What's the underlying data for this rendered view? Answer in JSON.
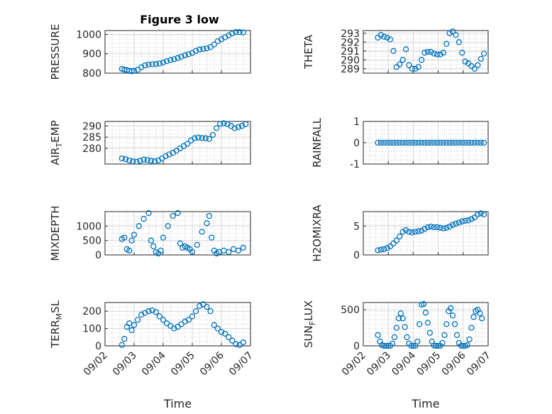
{
  "chart_data": [
    {
      "type": "scatter",
      "title": "Figure 3 low",
      "ylabel": "PRESSURE",
      "ylim": [
        800,
        1020
      ],
      "yticks": [
        800,
        900,
        1000
      ],
      "xlim": [
        "09/02",
        "09/07"
      ],
      "xticks": [],
      "grid": true,
      "marker_color": "#0072bd",
      "x": [
        "09/02 14:00",
        "09/02 16:00",
        "09/02 18:00",
        "09/02 20:00",
        "09/02 22:00",
        "09/03 00:00",
        "09/03 03:00",
        "09/03 06:00",
        "09/03 09:00",
        "09/03 12:00",
        "09/03 15:00",
        "09/03 18:00",
        "09/03 21:00",
        "09/04 00:00",
        "09/04 03:00",
        "09/04 06:00",
        "09/04 09:00",
        "09/04 12:00",
        "09/04 15:00",
        "09/04 18:00",
        "09/04 21:00",
        "09/05 00:00",
        "09/05 03:00",
        "09/05 06:00",
        "09/05 09:00",
        "09/05 12:00",
        "09/05 15:00",
        "09/05 18:00",
        "09/05 21:00",
        "09/06 00:00",
        "09/06 03:00",
        "09/06 06:00",
        "09/06 09:00",
        "09/06 12:00",
        "09/06 15:00",
        "09/06 18:00"
      ],
      "y": [
        822,
        818,
        815,
        812,
        810,
        812,
        818,
        830,
        840,
        844,
        846,
        847,
        850,
        855,
        862,
        868,
        872,
        878,
        885,
        892,
        898,
        905,
        915,
        922,
        925,
        928,
        935,
        948,
        965,
        975,
        985,
        995,
        1005,
        1012,
        1012,
        1010
      ]
    },
    {
      "type": "scatter",
      "ylabel": "THETA",
      "ylim": [
        288.5,
        293.3
      ],
      "yticks": [
        289,
        290,
        291,
        292,
        293
      ],
      "xlim": [
        "09/02",
        "09/07"
      ],
      "xticks": [],
      "grid": true,
      "marker_color": "#0072bd",
      "x": [
        "09/02 14:00",
        "09/02 17:00",
        "09/02 20:00",
        "09/02 23:00",
        "09/03 02:00",
        "09/03 05:00",
        "09/03 08:00",
        "09/03 11:00",
        "09/03 14:00",
        "09/03 17:00",
        "09/03 20:00",
        "09/03 23:00",
        "09/04 02:00",
        "09/04 05:00",
        "09/04 08:00",
        "09/04 11:00",
        "09/04 14:00",
        "09/04 17:00",
        "09/04 20:00",
        "09/04 23:00",
        "09/05 02:00",
        "09/05 05:00",
        "09/05 08:00",
        "09/05 11:00",
        "09/05 14:00",
        "09/05 17:00",
        "09/05 20:00",
        "09/05 23:00",
        "09/06 02:00",
        "09/06 05:00",
        "09/06 08:00",
        "09/06 11:00",
        "09/06 14:00",
        "09/06 17:00",
        "09/06 20:00"
      ],
      "y": [
        292.5,
        292.8,
        292.6,
        292.5,
        292.3,
        291.0,
        289.2,
        289.5,
        290.0,
        291.2,
        289.4,
        289.0,
        289.0,
        289.2,
        290.0,
        290.8,
        290.9,
        290.9,
        290.7,
        290.6,
        290.6,
        290.8,
        291.8,
        293.0,
        293.2,
        292.8,
        292.0,
        290.8,
        289.8,
        289.6,
        289.3,
        289.0,
        289.4,
        290.1,
        290.7
      ]
    },
    {
      "type": "scatter",
      "ylabel": "AIR_TEMP",
      "ylim": [
        273,
        292
      ],
      "yticks": [
        280,
        285,
        290
      ],
      "xlim": [
        "09/02",
        "09/07"
      ],
      "xticks": [],
      "grid": true,
      "marker_color": "#0072bd",
      "x": [
        "09/02 14:00",
        "09/02 17:00",
        "09/02 20:00",
        "09/02 23:00",
        "09/03 02:00",
        "09/03 05:00",
        "09/03 08:00",
        "09/03 11:00",
        "09/03 14:00",
        "09/03 17:00",
        "09/03 20:00",
        "09/03 23:00",
        "09/04 02:00",
        "09/04 05:00",
        "09/04 08:00",
        "09/04 11:00",
        "09/04 14:00",
        "09/04 17:00",
        "09/04 20:00",
        "09/04 23:00",
        "09/05 02:00",
        "09/05 05:00",
        "09/05 08:00",
        "09/05 11:00",
        "09/05 14:00",
        "09/05 17:00",
        "09/05 20:00",
        "09/05 23:00",
        "09/06 02:00",
        "09/06 05:00",
        "09/06 08:00",
        "09/06 11:00",
        "09/06 14:00",
        "09/06 17:00",
        "09/06 20:00"
      ],
      "y": [
        275.5,
        275.2,
        274.6,
        274.2,
        274.0,
        274.5,
        275.0,
        274.8,
        274.5,
        274.2,
        274.6,
        275.5,
        276.5,
        277.3,
        278.0,
        279.0,
        280.0,
        281.0,
        282.0,
        283.5,
        284.5,
        284.8,
        284.6,
        284.5,
        284.2,
        286.0,
        289.0,
        291.0,
        291.2,
        290.8,
        290.0,
        289.0,
        289.5,
        290.0,
        290.8
      ]
    },
    {
      "type": "scatter",
      "ylabel": "RAINFALL",
      "ylim": [
        -1,
        1
      ],
      "yticks": [
        -1,
        0,
        1
      ],
      "xlim": [
        "09/02",
        "09/07"
      ],
      "xticks": [],
      "grid": true,
      "marker_color": "#0072bd",
      "x": [
        "09/02 14:00",
        "09/02 17:00",
        "09/02 20:00",
        "09/02 23:00",
        "09/03 02:00",
        "09/03 05:00",
        "09/03 08:00",
        "09/03 11:00",
        "09/03 14:00",
        "09/03 17:00",
        "09/03 20:00",
        "09/03 23:00",
        "09/04 02:00",
        "09/04 05:00",
        "09/04 08:00",
        "09/04 11:00",
        "09/04 14:00",
        "09/04 17:00",
        "09/04 20:00",
        "09/04 23:00",
        "09/05 02:00",
        "09/05 05:00",
        "09/05 08:00",
        "09/05 11:00",
        "09/05 14:00",
        "09/05 17:00",
        "09/05 20:00",
        "09/05 23:00",
        "09/06 02:00",
        "09/06 05:00",
        "09/06 08:00",
        "09/06 11:00",
        "09/06 14:00",
        "09/06 17:00",
        "09/06 20:00"
      ],
      "y": [
        0,
        0,
        0,
        0,
        0,
        0,
        0,
        0,
        0,
        0,
        0,
        0,
        0,
        0,
        0,
        0,
        0,
        0,
        0,
        0,
        0,
        0,
        0,
        0,
        0,
        0,
        0,
        0,
        0,
        0,
        0,
        0,
        0,
        0,
        0
      ]
    },
    {
      "type": "scatter",
      "ylabel": "MIXDEPTH",
      "ylim": [
        0,
        1500
      ],
      "yticks": [
        0,
        500,
        1000
      ],
      "xlim": [
        "09/02",
        "09/07"
      ],
      "xticks": [],
      "grid": true,
      "marker_color": "#0072bd",
      "x": [
        "09/02 14:00",
        "09/02 16:00",
        "09/02 18:00",
        "09/02 20:00",
        "09/02 22:00",
        "09/03 00:00",
        "09/03 04:00",
        "09/03 08:00",
        "09/03 12:00",
        "09/03 14:00",
        "09/03 16:00",
        "09/03 18:00",
        "09/03 20:00",
        "09/03 22:00",
        "09/04 00:00",
        "09/04 04:00",
        "09/04 08:00",
        "09/04 12:00",
        "09/04 14:00",
        "09/04 16:00",
        "09/04 18:00",
        "09/04 20:00",
        "09/04 22:00",
        "09/05 00:00",
        "09/05 04:00",
        "09/05 08:00",
        "09/05 12:00",
        "09/05 14:00",
        "09/05 16:00",
        "09/05 18:00",
        "09/05 20:00",
        "09/05 22:00",
        "09/06 02:00",
        "09/06 06:00",
        "09/06 10:00",
        "09/06 14:00",
        "09/06 18:00"
      ],
      "y": [
        550,
        600,
        200,
        150,
        500,
        700,
        1000,
        1250,
        1450,
        500,
        300,
        100,
        50,
        150,
        600,
        1000,
        1350,
        1450,
        400,
        250,
        300,
        250,
        200,
        100,
        350,
        800,
        1100,
        1350,
        600,
        150,
        50,
        100,
        150,
        100,
        200,
        150,
        250
      ]
    },
    {
      "type": "scatter",
      "ylabel": "H2OMIXRA",
      "ylim": [
        0,
        7.5
      ],
      "yticks": [
        0,
        5
      ],
      "xlim": [
        "09/02",
        "09/07"
      ],
      "xticks": [],
      "grid": true,
      "marker_color": "#0072bd",
      "x": [
        "09/02 14:00",
        "09/02 17:00",
        "09/02 20:00",
        "09/02 23:00",
        "09/03 02:00",
        "09/03 05:00",
        "09/03 08:00",
        "09/03 11:00",
        "09/03 14:00",
        "09/03 17:00",
        "09/03 20:00",
        "09/03 23:00",
        "09/04 02:00",
        "09/04 05:00",
        "09/04 08:00",
        "09/04 11:00",
        "09/04 14:00",
        "09/04 17:00",
        "09/04 20:00",
        "09/04 23:00",
        "09/05 02:00",
        "09/05 05:00",
        "09/05 08:00",
        "09/05 11:00",
        "09/05 14:00",
        "09/05 17:00",
        "09/05 20:00",
        "09/05 23:00",
        "09/06 02:00",
        "09/06 05:00",
        "09/06 08:00",
        "09/06 11:00",
        "09/06 14:00",
        "09/06 17:00",
        "09/06 20:00"
      ],
      "y": [
        0.8,
        0.9,
        1.0,
        1.2,
        1.5,
        2.0,
        2.5,
        3.2,
        4.0,
        4.3,
        4.0,
        3.9,
        4.0,
        4.1,
        4.2,
        4.5,
        4.8,
        4.9,
        4.8,
        4.8,
        4.7,
        4.6,
        4.7,
        4.9,
        5.2,
        5.4,
        5.6,
        5.8,
        5.9,
        6.0,
        6.2,
        6.5,
        7.0,
        7.2,
        7.0
      ]
    },
    {
      "type": "scatter",
      "ylabel": "TERR_MSL",
      "ylim": [
        0,
        250
      ],
      "yticks": [
        0,
        100,
        200
      ],
      "xlim": [
        "09/02",
        "09/07"
      ],
      "xticks": [
        "09/02",
        "09/03",
        "09/04",
        "09/05",
        "09/06",
        "09/07"
      ],
      "xlabel": "Time",
      "grid": true,
      "marker_color": "#0072bd",
      "x": [
        "09/02 14:00",
        "09/02 16:00",
        "09/02 18:00",
        "09/02 20:00",
        "09/02 22:00",
        "09/03 00:00",
        "09/03 03:00",
        "09/03 06:00",
        "09/03 09:00",
        "09/03 12:00",
        "09/03 15:00",
        "09/03 18:00",
        "09/03 21:00",
        "09/04 00:00",
        "09/04 03:00",
        "09/04 06:00",
        "09/04 09:00",
        "09/04 12:00",
        "09/04 15:00",
        "09/04 18:00",
        "09/04 21:00",
        "09/05 00:00",
        "09/05 03:00",
        "09/05 06:00",
        "09/05 09:00",
        "09/05 12:00",
        "09/05 15:00",
        "09/05 18:00",
        "09/05 21:00",
        "09/06 00:00",
        "09/06 03:00",
        "09/06 06:00",
        "09/06 09:00",
        "09/06 12:00",
        "09/06 15:00",
        "09/06 18:00"
      ],
      "y": [
        5,
        40,
        110,
        130,
        90,
        120,
        150,
        180,
        190,
        200,
        205,
        195,
        170,
        150,
        130,
        115,
        100,
        110,
        125,
        140,
        150,
        170,
        200,
        230,
        240,
        225,
        200,
        120,
        100,
        80,
        70,
        50,
        30,
        10,
        5,
        20
      ]
    },
    {
      "type": "scatter",
      "ylabel": "SUN_FLUX",
      "ylim": [
        0,
        600
      ],
      "yticks": [
        0,
        500
      ],
      "xlim": [
        "09/02",
        "09/07"
      ],
      "xticks": [
        "09/02",
        "09/03",
        "09/04",
        "09/05",
        "09/06",
        "09/07"
      ],
      "xlabel": "Time",
      "grid": true,
      "marker_color": "#0072bd",
      "x": [
        "09/02 14:00",
        "09/02 16:00",
        "09/02 18:00",
        "09/02 20:00",
        "09/02 22:00",
        "09/03 00:00",
        "09/03 02:00",
        "09/03 04:00",
        "09/03 06:00",
        "09/03 08:00",
        "09/03 10:00",
        "09/03 12:00",
        "09/03 14:00",
        "09/03 16:00",
        "09/03 18:00",
        "09/03 20:00",
        "09/03 22:00",
        "09/04 00:00",
        "09/04 02:00",
        "09/04 04:00",
        "09/04 06:00",
        "09/04 08:00",
        "09/04 10:00",
        "09/04 12:00",
        "09/04 14:00",
        "09/04 16:00",
        "09/04 18:00",
        "09/04 20:00",
        "09/04 22:00",
        "09/05 00:00",
        "09/05 02:00",
        "09/05 04:00",
        "09/05 06:00",
        "09/05 08:00",
        "09/05 10:00",
        "09/05 12:00",
        "09/05 14:00",
        "09/05 16:00",
        "09/05 18:00",
        "09/05 20:00",
        "09/05 22:00",
        "09/06 00:00",
        "09/06 02:00",
        "09/06 04:00",
        "09/06 06:00",
        "09/06 08:00",
        "09/06 10:00",
        "09/06 12:00",
        "09/06 14:00",
        "09/06 16:00",
        "09/06 18:00"
      ],
      "y": [
        150,
        60,
        10,
        0,
        0,
        0,
        0,
        30,
        120,
        250,
        380,
        450,
        380,
        260,
        120,
        30,
        0,
        0,
        0,
        60,
        300,
        570,
        580,
        460,
        320,
        180,
        60,
        5,
        0,
        0,
        0,
        40,
        150,
        300,
        480,
        520,
        420,
        300,
        150,
        40,
        0,
        0,
        0,
        10,
        90,
        250,
        400,
        480,
        500,
        450,
        380
      ]
    }
  ]
}
